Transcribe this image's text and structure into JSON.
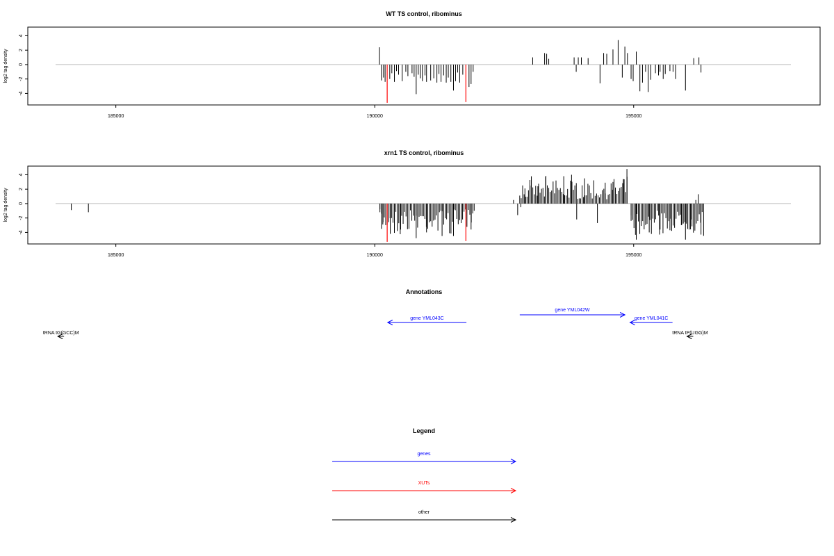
{
  "chart_data": [
    {
      "type": "bar",
      "title": "WT TS control, ribominus",
      "ylabel": "log2 tag density",
      "xlim": [
        183300,
        198600
      ],
      "ylim": [
        -5.6,
        5.2
      ],
      "xticks": [
        185000,
        190000,
        195000
      ],
      "yticks": [
        -4,
        -2,
        0,
        2,
        4
      ],
      "colors": {
        "bar": "#000000",
        "highlight": "#ff0000",
        "baseline": "#bebebe"
      },
      "highlight": [
        {
          "x": 190240,
          "y": -5.3
        },
        {
          "x": 191760,
          "y": -5.2
        }
      ],
      "bars": [
        [
          190090,
          2.4
        ],
        [
          190130,
          -2.2
        ],
        [
          190170,
          -1.8
        ],
        [
          190200,
          -2.4
        ],
        [
          190290,
          -2.0
        ],
        [
          190330,
          -1.2
        ],
        [
          190380,
          -2.4
        ],
        [
          190420,
          -0.9
        ],
        [
          190460,
          -1.4
        ],
        [
          190530,
          -2.3
        ],
        [
          190600,
          -1.0
        ],
        [
          190640,
          -1.6
        ],
        [
          190720,
          -1.2
        ],
        [
          190760,
          -1.7
        ],
        [
          190800,
          -4.1
        ],
        [
          190840,
          -1.4
        ],
        [
          190880,
          -1.9
        ],
        [
          190920,
          -2.3
        ],
        [
          190970,
          -1.5
        ],
        [
          191000,
          -2.4
        ],
        [
          191080,
          -2.2
        ],
        [
          191140,
          -1.9
        ],
        [
          191200,
          -2.5
        ],
        [
          191240,
          -1.3
        ],
        [
          191280,
          -2.4
        ],
        [
          191330,
          -1.5
        ],
        [
          191380,
          -2.5
        ],
        [
          191420,
          -1.8
        ],
        [
          191470,
          -2.4
        ],
        [
          191520,
          -3.6
        ],
        [
          191560,
          -2.3
        ],
        [
          191600,
          -1.1
        ],
        [
          191640,
          -2.5
        ],
        [
          191700,
          -1.4
        ],
        [
          191820,
          -3.1
        ],
        [
          191860,
          -2.7
        ],
        [
          191900,
          -1.0
        ],
        [
          193050,
          1.0
        ],
        [
          193280,
          1.6
        ],
        [
          193320,
          1.5
        ],
        [
          193360,
          0.8
        ],
        [
          193850,
          1.0
        ],
        [
          193890,
          -1.0
        ],
        [
          193930,
          1.0
        ],
        [
          193990,
          1.0
        ],
        [
          194120,
          0.9
        ],
        [
          194350,
          -2.6
        ],
        [
          194420,
          1.6
        ],
        [
          194480,
          1.5
        ],
        [
          194600,
          2.1
        ],
        [
          194700,
          3.4
        ],
        [
          194780,
          -1.8
        ],
        [
          194830,
          2.5
        ],
        [
          194880,
          1.6
        ],
        [
          194950,
          -2.0
        ],
        [
          194990,
          -2.3
        ],
        [
          195050,
          1.8
        ],
        [
          195120,
          -3.7
        ],
        [
          195170,
          -2.5
        ],
        [
          195230,
          -1.0
        ],
        [
          195280,
          -3.8
        ],
        [
          195330,
          -2.1
        ],
        [
          195420,
          -1.2
        ],
        [
          195480,
          -1.5
        ],
        [
          195510,
          -1.0
        ],
        [
          195570,
          -2.0
        ],
        [
          195610,
          -1.3
        ],
        [
          195700,
          -0.9
        ],
        [
          195760,
          -1.0
        ],
        [
          195810,
          -2.0
        ],
        [
          196000,
          -3.6
        ],
        [
          196160,
          0.9
        ],
        [
          196260,
          1.0
        ],
        [
          196300,
          -1.1
        ]
      ]
    },
    {
      "type": "bar",
      "title": "xrn1 TS control, ribominus",
      "ylabel": "log2 tag density",
      "xlim": [
        183300,
        198600
      ],
      "ylim": [
        -5.6,
        5.2
      ],
      "xticks": [
        185000,
        190000,
        195000
      ],
      "yticks": [
        -4,
        -2,
        0,
        2,
        4
      ],
      "colors": {
        "bar": "#000000",
        "highlight": "#ff0000",
        "baseline": "#bebebe"
      },
      "highlight": [
        {
          "x": 190240,
          "y": -5.3
        },
        {
          "x": 191760,
          "y": -5.2
        }
      ],
      "dense_segments": [
        {
          "x0": 190100,
          "x1": 191900,
          "sign": -1,
          "min": 0.8,
          "max": 4.8
        },
        {
          "x0": 192800,
          "x1": 194880,
          "sign": 1,
          "min": 0.6,
          "max": 3.9
        },
        {
          "x0": 194950,
          "x1": 196350,
          "sign": -1,
          "min": 1.0,
          "max": 5.0
        }
      ],
      "bars": [
        [
          184140,
          -0.9
        ],
        [
          184470,
          -1.2
        ],
        [
          190100,
          -1.2
        ],
        [
          190130,
          -3.5
        ],
        [
          190160,
          -2.6
        ],
        [
          190300,
          -4.2
        ],
        [
          190500,
          -3.6
        ],
        [
          190800,
          -4.8
        ],
        [
          191000,
          -4.0
        ],
        [
          191300,
          -4.5
        ],
        [
          191520,
          -4.5
        ],
        [
          191860,
          -3.6
        ],
        [
          191920,
          -1.0
        ],
        [
          192680,
          0.5
        ],
        [
          192760,
          -1.6
        ],
        [
          192820,
          -0.5
        ],
        [
          192900,
          2.1
        ],
        [
          193000,
          2.5
        ],
        [
          193150,
          2.4
        ],
        [
          193300,
          3.7
        ],
        [
          193500,
          3.2
        ],
        [
          193650,
          3.8
        ],
        [
          193800,
          4.0
        ],
        [
          193900,
          -2.2
        ],
        [
          194050,
          3.5
        ],
        [
          194300,
          -2.7
        ],
        [
          194450,
          2.9
        ],
        [
          194600,
          3.0
        ],
        [
          194800,
          3.4
        ],
        [
          194870,
          4.8
        ],
        [
          194950,
          -2.4
        ],
        [
          195050,
          -5.0
        ],
        [
          195300,
          -4.0
        ],
        [
          195500,
          -4.3
        ],
        [
          195700,
          -3.7
        ],
        [
          195920,
          -3.0
        ],
        [
          196000,
          -5.0
        ],
        [
          196070,
          -3.6
        ],
        [
          196120,
          -2.2
        ],
        [
          196200,
          0.5
        ],
        [
          196250,
          1.3
        ],
        [
          196300,
          -4.3
        ]
      ]
    }
  ],
  "annotations": {
    "title": "Annotations",
    "features": [
      {
        "label": "gene YML043C",
        "x0": 191770,
        "x1": 190250,
        "color": "#0000ff",
        "row": 1
      },
      {
        "label": "gene YML042W",
        "x0": 192800,
        "x1": 194830,
        "color": "#0000ff",
        "row": 0
      },
      {
        "label": "gene YML041C",
        "x0": 195750,
        "x1": 194930,
        "color": "#0000ff",
        "row": 1
      },
      {
        "label": "tRNA tG(GCC)M",
        "x0": 184000,
        "x1": 183880,
        "color": "#000000",
        "row": 2
      },
      {
        "label": "tRNA tP(UGG)M",
        "x0": 196150,
        "x1": 196030,
        "color": "#000000",
        "row": 2
      }
    ]
  },
  "legend": {
    "title": "Legend",
    "items": [
      {
        "label": "genes",
        "color": "#0000ff"
      },
      {
        "label": "XUTs",
        "color": "#ff0000"
      },
      {
        "label": "other",
        "color": "#000000"
      }
    ]
  }
}
